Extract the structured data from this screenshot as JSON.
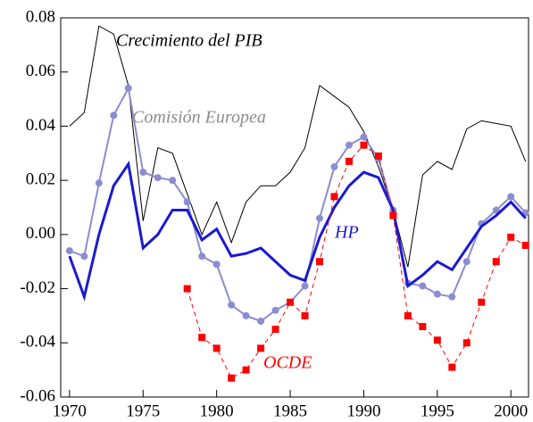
{
  "chart_data": {
    "type": "line",
    "x": [
      1970,
      1971,
      1972,
      1973,
      1974,
      1975,
      1976,
      1977,
      1978,
      1979,
      1980,
      1981,
      1982,
      1983,
      1984,
      1985,
      1986,
      1987,
      1988,
      1989,
      1990,
      1991,
      1992,
      1993,
      1994,
      1995,
      1996,
      1997,
      1998,
      1999,
      2000,
      2001
    ],
    "series": [
      {
        "name": "Crecimiento del PIB",
        "color": "#000000",
        "width": 1,
        "marker": "none",
        "values": [
          0.04,
          0.045,
          0.077,
          0.074,
          0.055,
          0.005,
          0.032,
          0.03,
          0.015,
          0.0,
          0.012,
          -0.003,
          0.012,
          0.018,
          0.018,
          0.023,
          0.032,
          0.055,
          0.051,
          0.047,
          0.038,
          0.025,
          0.009,
          -0.012,
          0.022,
          0.027,
          0.024,
          0.039,
          0.042,
          0.041,
          0.04,
          0.027
        ]
      },
      {
        "name": "Comisión Europea",
        "color": "#8c8cd0",
        "label_color": "#8c8c8c",
        "width": 2,
        "marker": "circle",
        "values": [
          -0.006,
          -0.008,
          0.019,
          0.044,
          0.054,
          0.023,
          0.021,
          0.02,
          0.012,
          -0.008,
          -0.011,
          -0.026,
          -0.03,
          -0.032,
          -0.028,
          -0.025,
          -0.019,
          0.006,
          0.025,
          0.033,
          0.036,
          0.028,
          0.009,
          -0.018,
          -0.019,
          -0.022,
          -0.023,
          -0.01,
          0.004,
          0.009,
          0.014,
          0.008
        ]
      },
      {
        "name": "HP",
        "color": "#1a1ad0",
        "width": 3,
        "marker": "none",
        "values": [
          -0.008,
          -0.023,
          0.0,
          0.018,
          0.026,
          -0.005,
          0.0,
          0.009,
          0.009,
          -0.002,
          0.002,
          -0.008,
          -0.007,
          -0.005,
          -0.01,
          -0.015,
          -0.017,
          -0.001,
          0.01,
          0.018,
          0.023,
          0.021,
          0.009,
          -0.019,
          -0.015,
          -0.01,
          -0.013,
          -0.005,
          0.003,
          0.007,
          0.012,
          0.006
        ]
      },
      {
        "name": "OCDE",
        "color": "#ff0000",
        "width": 1,
        "marker": "square",
        "dashed": true,
        "values": [
          null,
          null,
          null,
          null,
          null,
          null,
          null,
          null,
          -0.02,
          -0.038,
          -0.042,
          -0.053,
          -0.05,
          -0.042,
          -0.035,
          -0.025,
          -0.03,
          -0.01,
          0.014,
          0.027,
          0.033,
          0.029,
          0.007,
          -0.03,
          -0.034,
          -0.039,
          -0.049,
          -0.04,
          -0.025,
          -0.01,
          -0.001,
          -0.004
        ]
      }
    ],
    "xlim": [
      1969.4,
      2001.2
    ],
    "ylim": [
      -0.06,
      0.08
    ],
    "xticks": [
      1970,
      1975,
      1980,
      1985,
      1990,
      1995,
      2000
    ],
    "yticks": [
      {
        "value": -0.06,
        "label": "-0.06"
      },
      {
        "value": -0.04,
        "label": "-0.04"
      },
      {
        "value": -0.02,
        "label": "-0.02"
      },
      {
        "value": 0,
        "label": "0.00"
      },
      {
        "value": 0.02,
        "label": "0.02"
      },
      {
        "value": 0.04,
        "label": "0.04"
      },
      {
        "value": 0.06,
        "label": "0.06"
      },
      {
        "value": 0.08,
        "label": "0.08"
      }
    ]
  }
}
